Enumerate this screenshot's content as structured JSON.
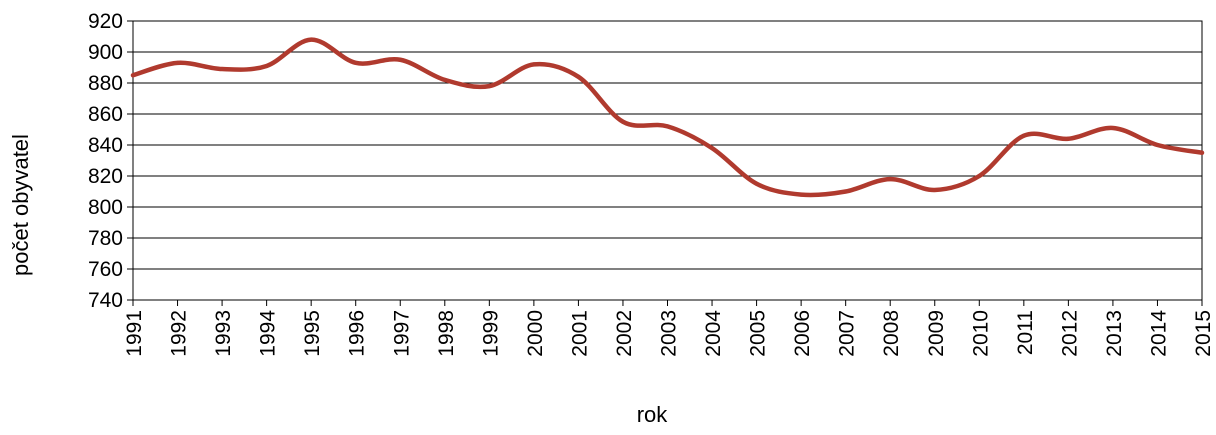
{
  "chart_data": {
    "type": "line",
    "title": "",
    "xlabel": "rok",
    "ylabel": "počet obyvatel",
    "ylim": [
      740,
      920
    ],
    "yticks": [
      740,
      760,
      780,
      800,
      820,
      840,
      860,
      880,
      900,
      920
    ],
    "grid": true,
    "categories": [
      "1991",
      "1992",
      "1993",
      "1994",
      "1995",
      "1996",
      "1997",
      "1998",
      "1999",
      "2000",
      "2001",
      "2002",
      "2003",
      "2004",
      "2005",
      "2006",
      "2007",
      "2008",
      "2009",
      "2010",
      "2011",
      "2012",
      "2013",
      "2014",
      "2015"
    ],
    "series": [
      {
        "values": [
          885,
          893,
          889,
          891,
          908,
          893,
          895,
          882,
          878,
          892,
          884,
          855,
          852,
          838,
          815,
          808,
          810,
          818,
          811,
          820,
          846,
          844,
          851,
          840,
          835
        ],
        "color": "#b03a2e"
      }
    ],
    "colors": {
      "line": "#b03a2e",
      "grid": "#000000",
      "axis": "#000000",
      "text": "#000000"
    }
  }
}
